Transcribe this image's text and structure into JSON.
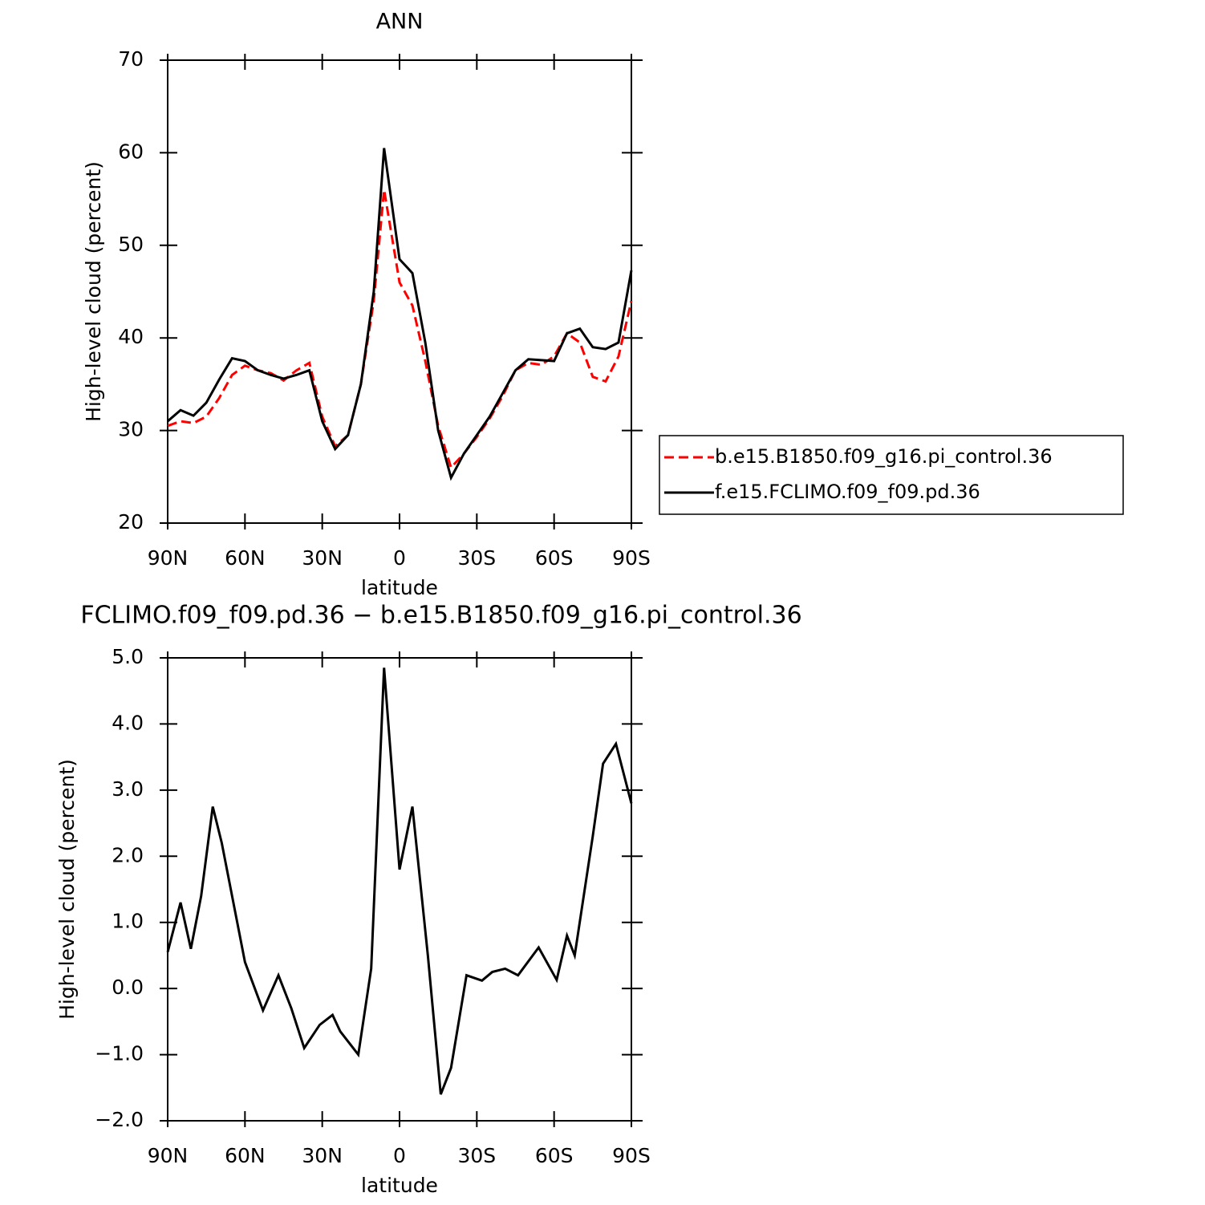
{
  "chart_data": [
    {
      "type": "line",
      "title": "ANN",
      "xlabel": "latitude",
      "ylabel": "High-level cloud (percent)",
      "x": [
        90,
        85,
        80,
        75,
        70,
        65,
        60,
        55,
        50,
        45,
        40,
        35,
        30,
        25,
        20,
        15,
        10,
        6,
        0,
        -5,
        -10,
        -15,
        -20,
        -25,
        -30,
        -35,
        -40,
        -45,
        -50,
        -55,
        -60,
        -65,
        -70,
        -75,
        -80,
        -85,
        -90
      ],
      "series": [
        {
          "name": "b.e15.B1850.f09_g16.pi_control.36",
          "color": "#ff0000",
          "linestyle": "dashed",
          "values": [
            30.5,
            31.0,
            30.8,
            31.5,
            33.5,
            36.0,
            37.0,
            36.5,
            36.2,
            35.4,
            36.5,
            37.3,
            31.5,
            28.3,
            29.5,
            35.0,
            44.0,
            56.0,
            46.0,
            43.5,
            37.5,
            30.5,
            26.0,
            27.5,
            29.3,
            31.3,
            33.7,
            36.5,
            37.3,
            37.1,
            38.0,
            40.5,
            39.5,
            35.8,
            35.3,
            38.0,
            44.0
          ]
        },
        {
          "name": "f.e15.FCLIMO.f09_f09.pd.36",
          "color": "#000000",
          "linestyle": "solid",
          "values": [
            31.0,
            32.2,
            31.6,
            33.0,
            35.5,
            37.8,
            37.5,
            36.5,
            36.0,
            35.6,
            36.0,
            36.5,
            31.0,
            28.0,
            29.5,
            35.0,
            45.0,
            60.5,
            48.5,
            47.0,
            39.5,
            30.0,
            24.9,
            27.5,
            29.5,
            31.5,
            34.0,
            36.5,
            37.7,
            37.6,
            37.5,
            40.5,
            41.0,
            39.0,
            38.8,
            39.5,
            47.3
          ]
        }
      ],
      "xlim": [
        90,
        -90
      ],
      "xticks": [
        {
          "value": 90,
          "label": "90N"
        },
        {
          "value": 60,
          "label": "60N"
        },
        {
          "value": 30,
          "label": "30N"
        },
        0,
        {
          "value": -30,
          "label": "30S"
        },
        {
          "value": -60,
          "label": "60S"
        },
        {
          "value": -90,
          "label": "90S"
        }
      ],
      "ylim": [
        20,
        70
      ],
      "yticks": [
        20,
        30,
        40,
        50,
        60,
        70
      ],
      "legend": "right"
    },
    {
      "type": "line",
      "title": "FCLIMO.f09_f09.pd.36 − b.e15.B1850.f09_g16.pi_control.36",
      "xlabel": "latitude",
      "ylabel": "High-level cloud (percent)",
      "x": [
        90,
        85,
        81,
        77,
        72.5,
        69,
        63,
        60,
        53,
        47,
        42,
        37,
        31,
        26,
        23,
        16,
        11,
        6,
        0,
        -5,
        -11,
        -16,
        -20,
        -26,
        -32,
        -36,
        -41,
        -46,
        -54,
        -61,
        -65,
        -68,
        -75,
        -79,
        -84,
        -90
      ],
      "values": [
        0.55,
        1.3,
        0.6,
        1.4,
        2.75,
        2.2,
        1.0,
        0.4,
        -0.33,
        0.2,
        -0.3,
        -0.9,
        -0.55,
        -0.4,
        -0.65,
        -1.0,
        0.3,
        4.85,
        1.8,
        2.75,
        0.5,
        -1.6,
        -1.2,
        0.2,
        0.12,
        0.25,
        0.3,
        0.2,
        0.62,
        0.13,
        0.8,
        0.5,
        2.3,
        3.4,
        3.7,
        2.8
      ],
      "color": "#000000",
      "xlim": [
        90,
        -90
      ],
      "xticks": [
        {
          "value": 90,
          "label": "90N"
        },
        {
          "value": 60,
          "label": "60N"
        },
        {
          "value": 30,
          "label": "30N"
        },
        0,
        {
          "value": -30,
          "label": "30S"
        },
        {
          "value": -60,
          "label": "60S"
        },
        {
          "value": -90,
          "label": "90S"
        }
      ],
      "ylim": [
        -2,
        5
      ],
      "yticks": [
        {
          "value": -2,
          "label": "−2.0"
        },
        {
          "value": -1,
          "label": "−1.0"
        },
        {
          "value": 0,
          "label": "0.0"
        },
        {
          "value": 1,
          "label": "1.0"
        },
        {
          "value": 2,
          "label": "2.0"
        },
        {
          "value": 3,
          "label": "3.0"
        },
        {
          "value": 4,
          "label": "4.0"
        },
        {
          "value": 5,
          "label": "5.0"
        }
      ]
    }
  ]
}
